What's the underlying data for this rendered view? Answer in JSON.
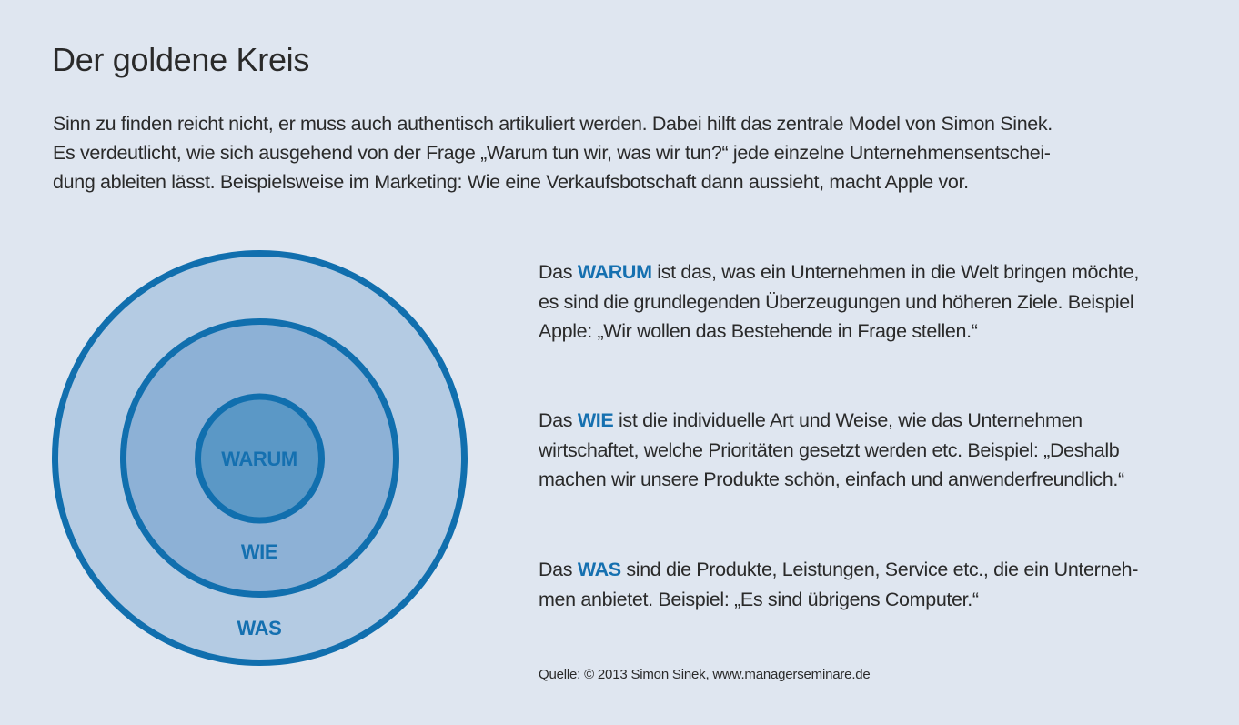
{
  "page": {
    "title": "Der goldene Kreis",
    "intro_lines": [
      "Sinn zu finden reicht nicht, er muss auch authentisch artikuliert werden. Dabei hilft das zentrale Model von Simon Sinek.",
      "Es verdeutlicht, wie sich ausgehend von der Frage „Warum tun wir, was wir tun?“ jede einzelne Unternehmensentschei-",
      "dung ableiten lässt. Beispielsweise im Marketing: Wie eine Verkaufsbotschaft dann aussieht, macht Apple vor."
    ]
  },
  "diagram": {
    "colors": {
      "stroke": "#116fae",
      "outer_fill": "#b4cbe3",
      "middle_fill": "#8db1d6",
      "inner_fill": "#5b98c6",
      "label": "#1570b0"
    },
    "circles": [
      {
        "id": "outer",
        "label": "WAS"
      },
      {
        "id": "middle",
        "label": "WIE"
      },
      {
        "id": "inner",
        "label": "WARUM"
      }
    ]
  },
  "descriptions": [
    {
      "prefix": "Das ",
      "keyword": "WARUM",
      "first_line_rest": " ist das, was ein Unternehmen in die Welt bringen möchte,",
      "lines": [
        "es sind die grundlegenden Überzeugungen und höheren Ziele. Beispiel",
        "Apple: „Wir wollen das Bestehende in Frage stellen.“"
      ]
    },
    {
      "prefix": "Das ",
      "keyword": "WIE",
      "first_line_rest": " ist die individuelle Art und Weise, wie das Unternehmen",
      "lines": [
        "wirtschaftet, welche Prioritäten gesetzt werden etc. Beispiel: „Deshalb",
        "machen wir unsere Produkte schön, einfach und anwenderfreundlich.“"
      ]
    },
    {
      "prefix": "Das ",
      "keyword": "WAS",
      "first_line_rest": " sind die Produkte, Leistungen, Service etc., die ein Unterneh-",
      "lines": [
        "men anbietet. Beispiel: „Es sind übrigens Computer.“"
      ]
    }
  ],
  "source": "Quelle: © 2013 Simon Sinek, www.managerseminare.de"
}
